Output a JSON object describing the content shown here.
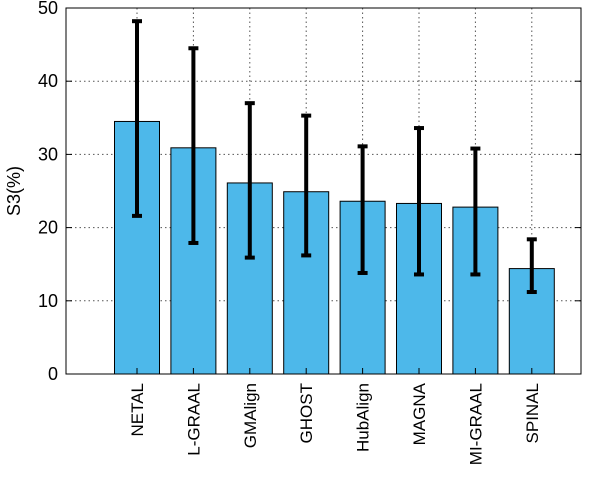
{
  "chart_data": {
    "type": "bar",
    "title": "",
    "xlabel": "",
    "ylabel": "S3(%)",
    "ylim": [
      0,
      50
    ],
    "yticks": [
      0,
      10,
      20,
      30,
      40,
      50
    ],
    "grid": true,
    "categories": [
      "NETAL",
      "L-GRAAL",
      "GMAlign",
      "GHOST",
      "HubAlign",
      "MAGNA",
      "MI-GRAAL",
      "SPINAL"
    ],
    "series": [
      {
        "values": [
          34.5,
          30.9,
          26.1,
          24.9,
          23.6,
          23.3,
          22.8,
          14.4
        ],
        "error_low": [
          21.6,
          17.9,
          15.9,
          16.2,
          13.8,
          13.6,
          13.6,
          11.2
        ],
        "error_high": [
          48.2,
          44.5,
          37.0,
          35.3,
          31.1,
          33.6,
          30.8,
          18.4
        ]
      }
    ],
    "colors": {
      "bar": "#4DB8EA",
      "bar_edge": "#000000",
      "error_bar": "#000000",
      "grid": "#555555"
    }
  }
}
